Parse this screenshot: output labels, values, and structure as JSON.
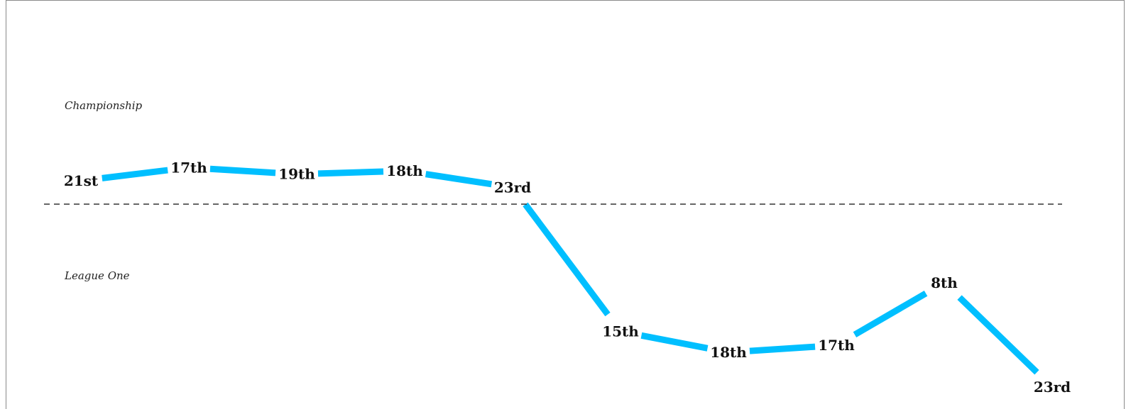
{
  "chart_data": {
    "type": "line",
    "title": "",
    "xlabel": "",
    "ylabel": "",
    "series": [
      {
        "values": [
          {
            "division": "Championship",
            "position": 21,
            "label": "21st"
          },
          {
            "division": "Championship",
            "position": 17,
            "label": "17th"
          },
          {
            "division": "Championship",
            "position": 19,
            "label": "19th"
          },
          {
            "division": "Championship",
            "position": 18,
            "label": "18th"
          },
          {
            "division": "Championship",
            "position": 23,
            "label": "23rd"
          },
          {
            "division": "League One",
            "position": 15,
            "label": "15th"
          },
          {
            "division": "League One",
            "position": 18,
            "label": "18th"
          },
          {
            "division": "League One",
            "position": 17,
            "label": "17th"
          },
          {
            "division": "League One",
            "position": 8,
            "label": "8th"
          },
          {
            "division": "League One",
            "position": 23,
            "label": "23rd"
          }
        ]
      }
    ],
    "division_labels": [
      "Championship",
      "League One"
    ],
    "division_separator": "dashed",
    "grid": false,
    "line_color": "#00bfff"
  }
}
